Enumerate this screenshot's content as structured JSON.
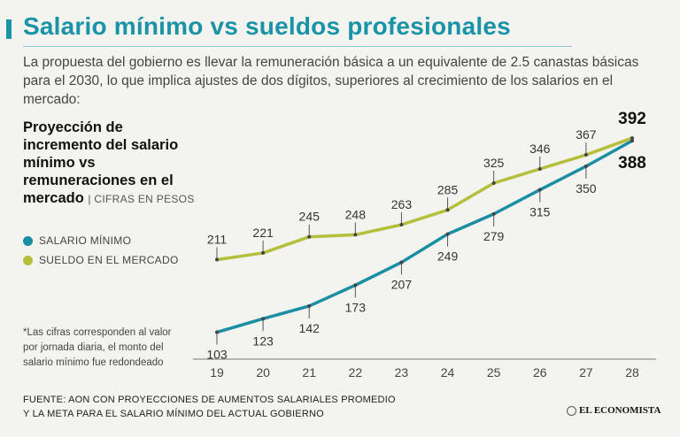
{
  "header": {
    "title": "Salario mínimo vs sueldos profesionales",
    "subtitle": "La propuesta del gobierno es llevar la remuneración básica a un equivalente de 2.5 canastas básicas para el 2030, lo que implica ajustes de dos dígitos, superiores al crecimiento de los salarios en el mercado:"
  },
  "chart_title": {
    "main": "Proyección de incremento del salario mínimo vs remuneraciones en el mercado",
    "units": "| CIFRAS EN PESOS"
  },
  "note": "*Las cifras corresponden al valor por jornada diaria, el monto del salario mínimo fue redondeado",
  "source": "FUENTE: AON CON PROYECCIONES DE AUMENTOS SALARIALES PROMEDIO Y LA META PARA EL SALARIO MÍNIMO DEL ACTUAL GOBIERNO",
  "brand": "EL ECONOMISTA",
  "chart_data": {
    "type": "line",
    "title": "Proyección de incremento del salario mínimo vs remuneraciones en el mercado",
    "xlabel": "",
    "ylabel": "Cifras en pesos",
    "x": [
      "19",
      "20",
      "21",
      "22",
      "23",
      "24",
      "25",
      "26",
      "27",
      "28"
    ],
    "ylim": [
      80,
      400
    ],
    "grid": false,
    "legend_position": "left",
    "series": [
      {
        "name": "SALARIO MÍNIMO",
        "color": "#1a8ea3",
        "values": [
          103,
          123,
          142,
          173,
          207,
          249,
          279,
          315,
          350,
          388
        ],
        "labels": [
          "103",
          "123",
          "142",
          "173",
          "207",
          "249",
          "279",
          "315",
          "350",
          "388"
        ],
        "label_side": "below"
      },
      {
        "name": "SUELDO EN EL MERCADO",
        "color": "#b6bf3b",
        "values": [
          211,
          221,
          245,
          248,
          263,
          285,
          325,
          346,
          367,
          392
        ],
        "labels": [
          "211",
          "221",
          "245",
          "248",
          "263",
          "285",
          "325",
          "346",
          "367",
          "392"
        ],
        "label_side": "above"
      }
    ]
  }
}
